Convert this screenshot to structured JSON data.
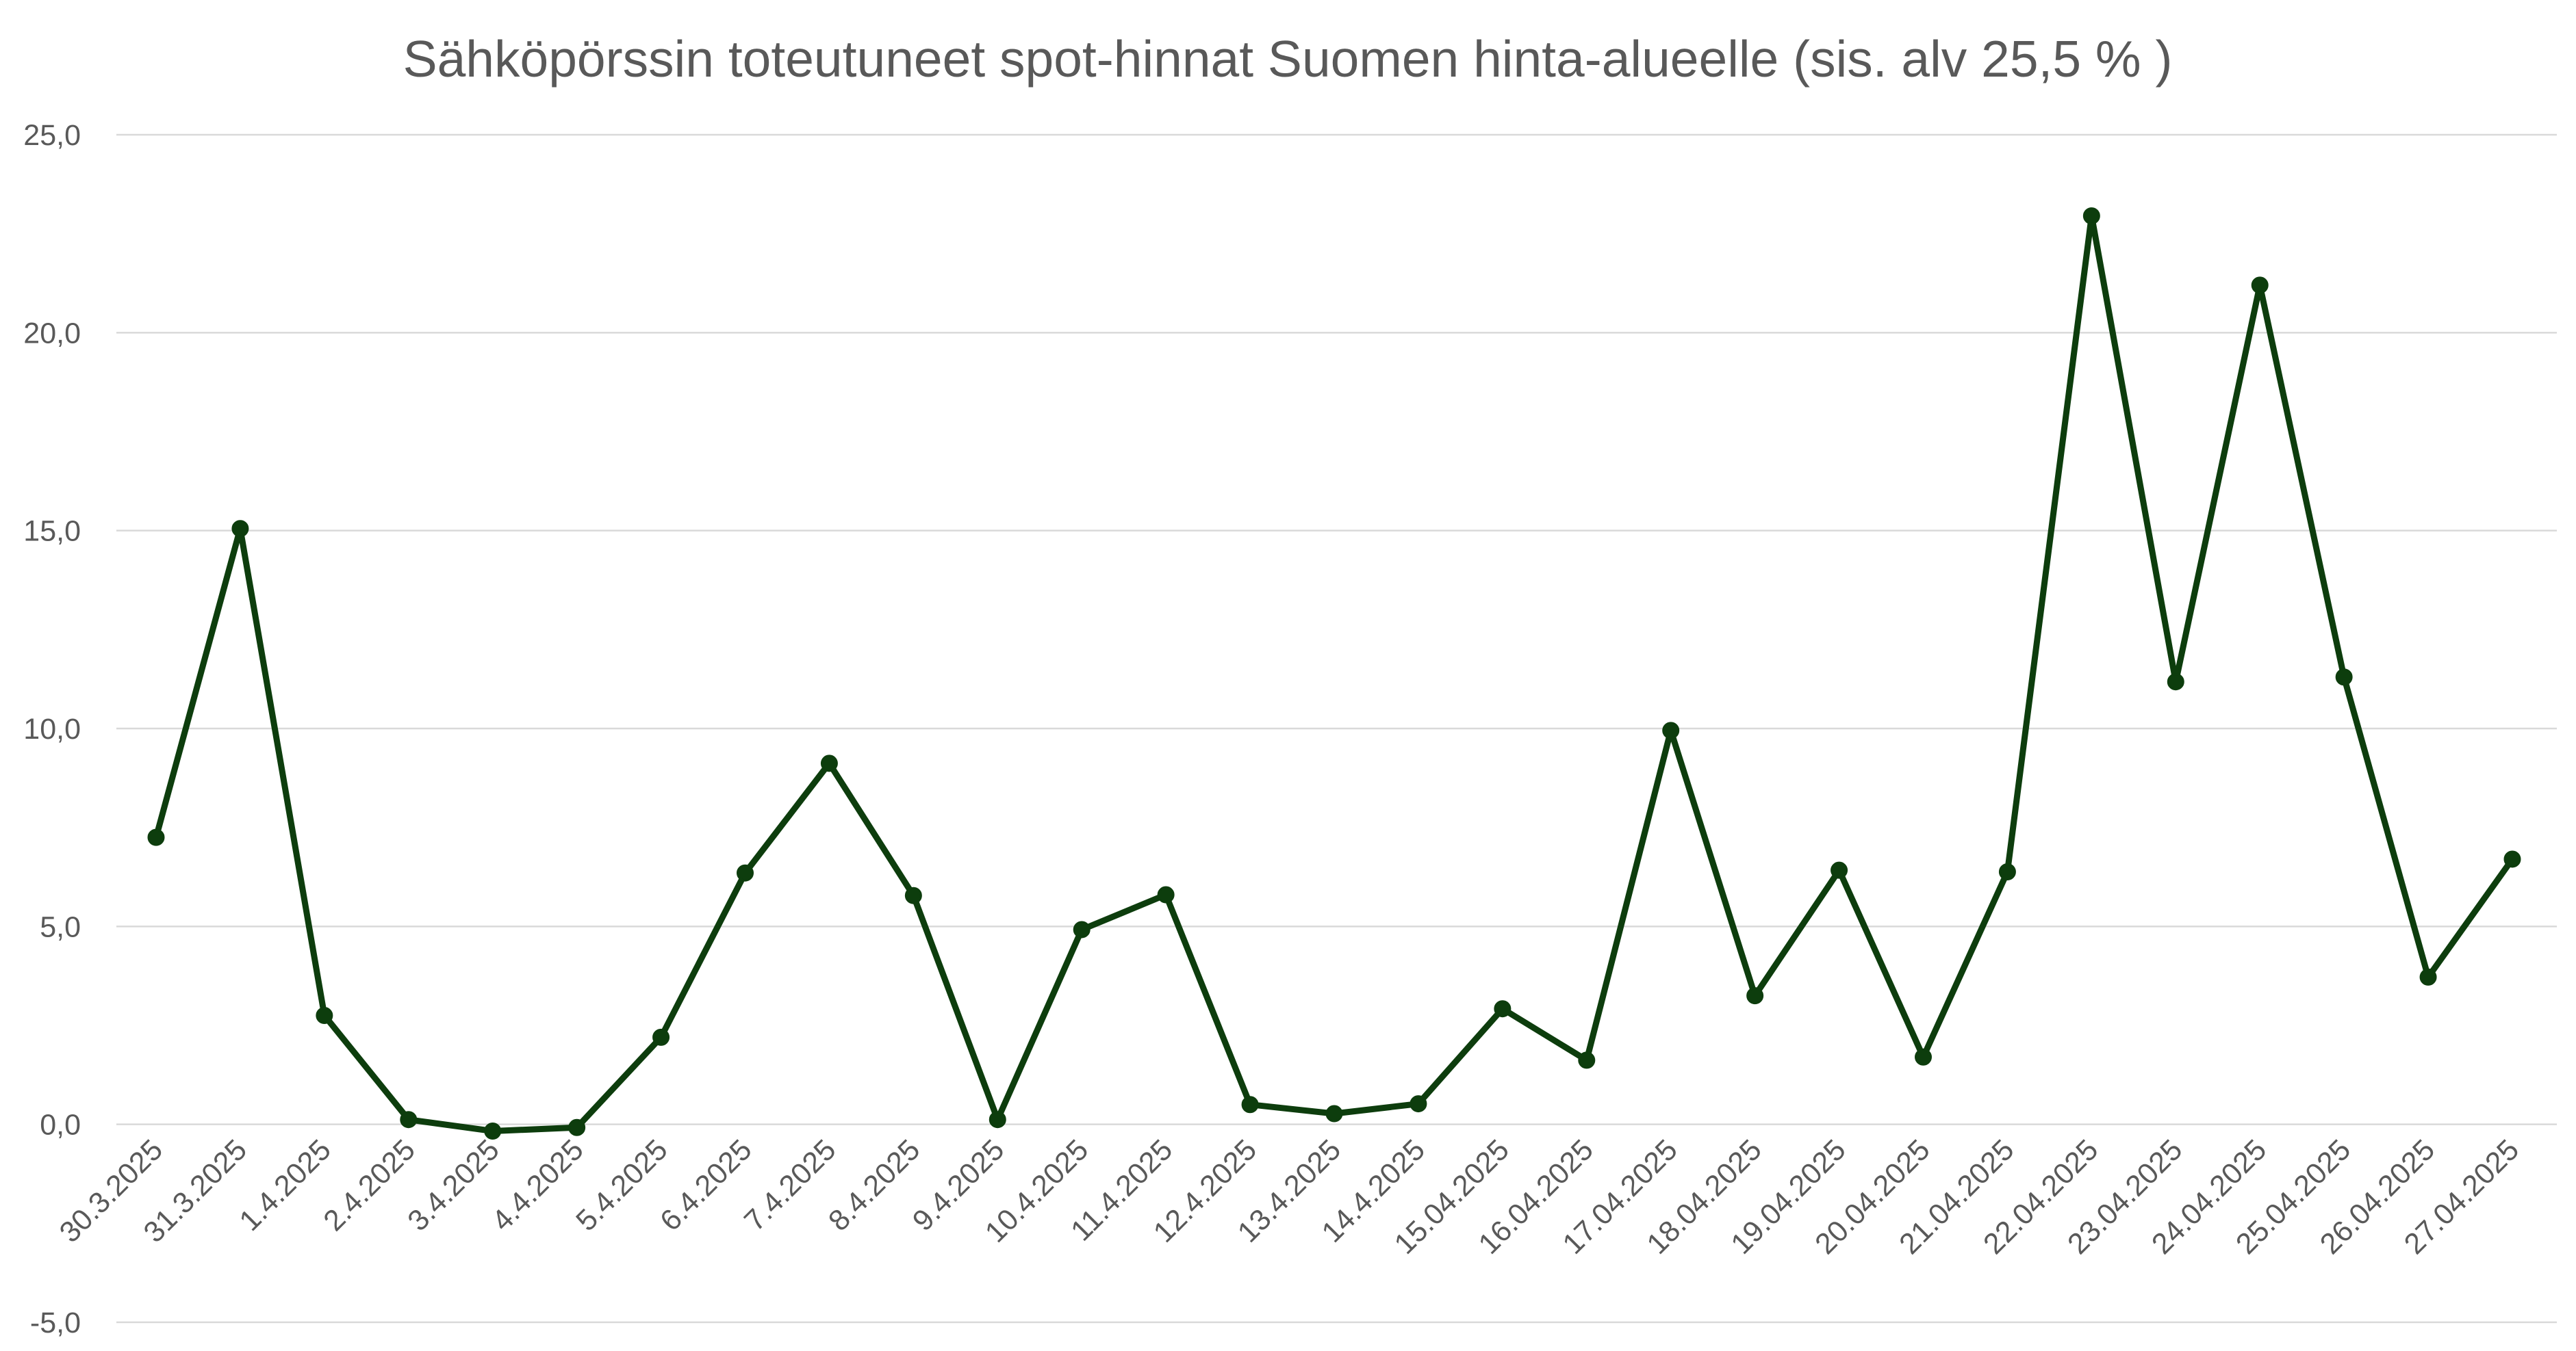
{
  "chart_data": {
    "type": "line",
    "title": "Sähköpörssin toteutuneet spot-hinnat Suomen hinta-alueelle (sis. alv 25,5 % )",
    "xlabel": "",
    "ylabel": "",
    "ylim": [
      -5,
      25
    ],
    "yticks": [
      "-5,0",
      "0,0",
      "5,0",
      "10,0",
      "15,0",
      "20,0",
      "25,0"
    ],
    "ytick_values": [
      -5,
      0,
      5,
      10,
      15,
      20,
      25
    ],
    "grid": true,
    "legend": "none",
    "line_color": "#0d3d0d",
    "categories": [
      "30.3.2025",
      "31.3.2025",
      "1.4.2025",
      "2.4.2025",
      "3.4.2025",
      "4.4.2025",
      "5.4.2025",
      "6.4.2025",
      "7.4.2025",
      "8.4.2025",
      "9.4.2025",
      "10.4.2025",
      "11.4.2025",
      "12.4.2025",
      "13.4.2025",
      "14.4.2025",
      "15.04.2025",
      "16.04.2025",
      "17.04.2025",
      "18.04.2025",
      "19.04.2025",
      "20.04.2025",
      "21.04.2025",
      "22.04.2025",
      "23.04.2025",
      "24.04.2025",
      "25.04.2025",
      "26.04.2025",
      "27.04.2025"
    ],
    "values": [
      7.25,
      15.05,
      2.75,
      0.12,
      -0.17,
      -0.08,
      2.2,
      6.35,
      9.12,
      5.78,
      0.12,
      4.92,
      5.8,
      0.5,
      0.27,
      0.52,
      2.92,
      1.62,
      9.95,
      3.25,
      6.42,
      1.7,
      6.38,
      22.95,
      11.18,
      21.2,
      11.3,
      3.72,
      6.7
    ]
  }
}
